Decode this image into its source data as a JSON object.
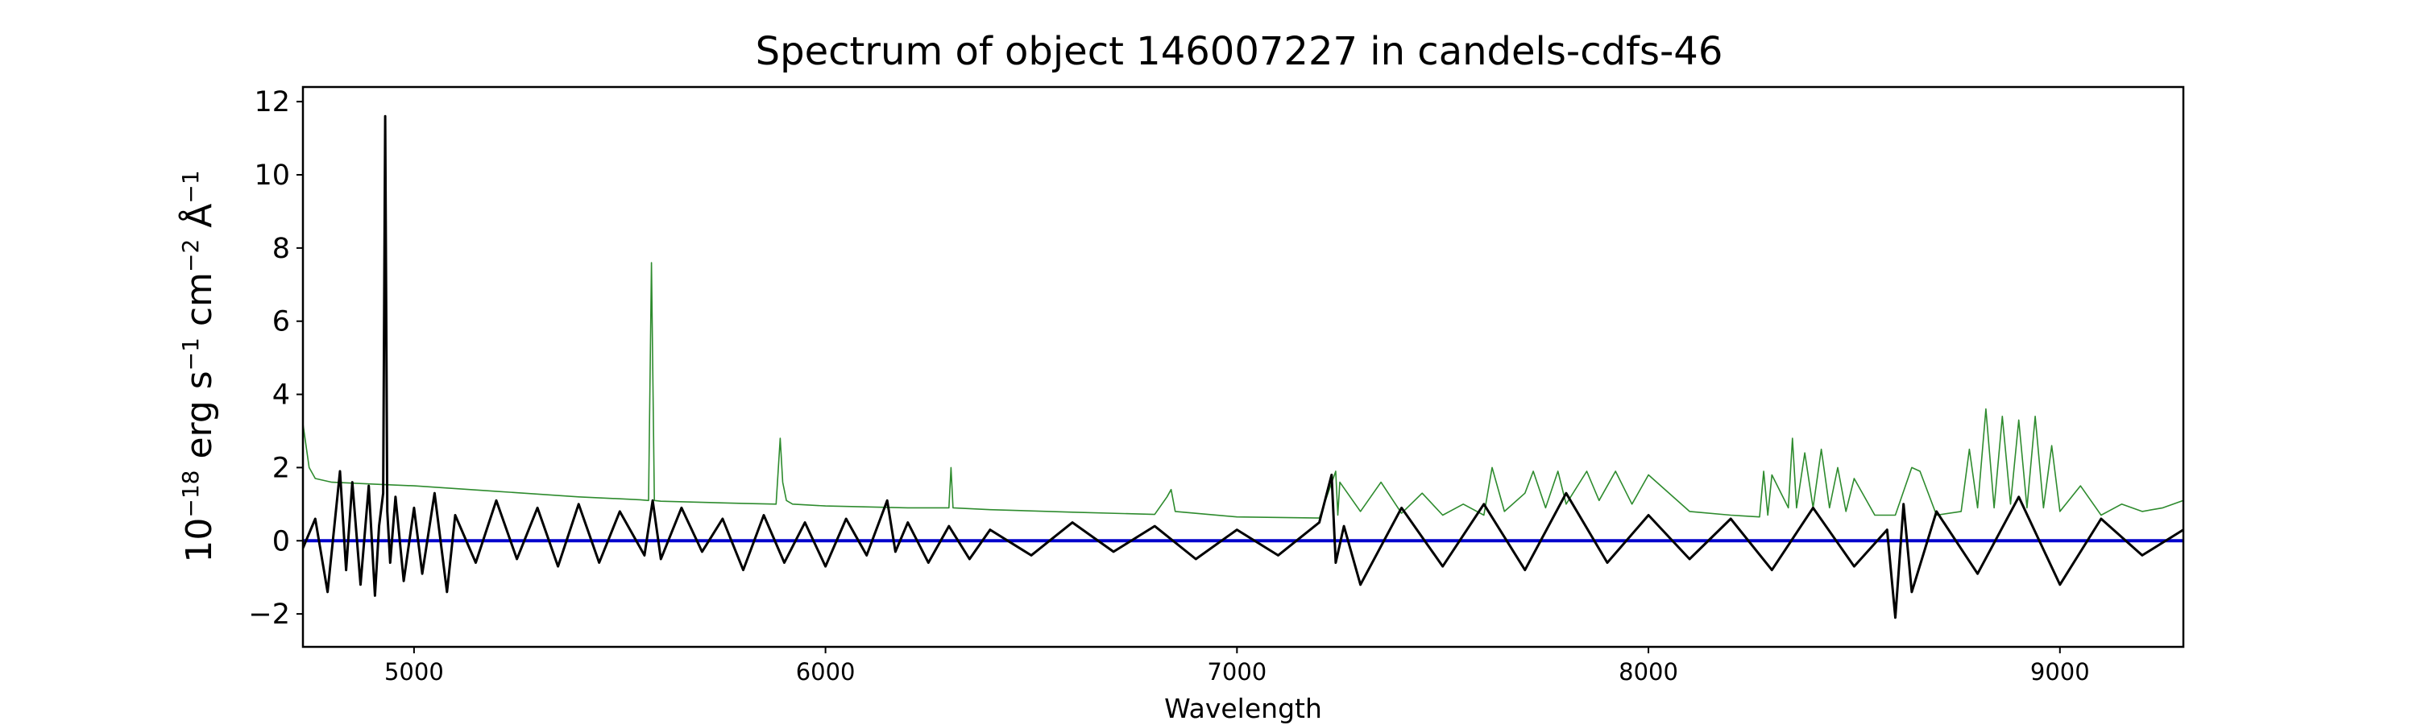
{
  "chart_data": {
    "type": "line",
    "title": "Spectrum of object 146007227 in candels-cdfs-46",
    "xlabel": "Wavelength",
    "ylabel": {
      "base": "10",
      "exp": "−18",
      "t1": " erg s",
      "e1": "−1",
      "t2": " cm",
      "e2": "−2",
      "t3": " Å",
      "e3": "−1"
    },
    "xlim": [
      4730,
      9300
    ],
    "ylim": [
      -2.9,
      12.4
    ],
    "xticks": [
      5000,
      6000,
      7000,
      8000,
      9000
    ],
    "yticks": [
      -2,
      0,
      2,
      4,
      6,
      8,
      10,
      12
    ],
    "ytick_labels": [
      "−2",
      "0",
      "2",
      "4",
      "6",
      "8",
      "10",
      "12"
    ],
    "grid": false,
    "colors": {
      "spectrum": "#000000",
      "sky": "#2e8b2e",
      "zero": "#0000cc"
    },
    "series": [
      {
        "role": "spectrum",
        "x": [
          4730,
          4760,
          4790,
          4820,
          4835,
          4850,
          4870,
          4890,
          4905,
          4915,
          4925,
          4930,
          4935,
          4942,
          4955,
          4975,
          5000,
          5020,
          5050,
          5080,
          5100,
          5150,
          5200,
          5250,
          5300,
          5350,
          5400,
          5450,
          5500,
          5560,
          5580,
          5600,
          5650,
          5700,
          5750,
          5800,
          5850,
          5900,
          5950,
          6000,
          6050,
          6100,
          6150,
          6170,
          6200,
          6250,
          6300,
          6350,
          6400,
          6500,
          6600,
          6700,
          6800,
          6900,
          7000,
          7100,
          7200,
          7230,
          7240,
          7260,
          7300,
          7400,
          7500,
          7600,
          7700,
          7800,
          7900,
          8000,
          8100,
          8200,
          8300,
          8400,
          8500,
          8580,
          8600,
          8620,
          8640,
          8700,
          8800,
          8900,
          9000,
          9100,
          9200,
          9300
        ],
        "y": [
          -0.2,
          0.6,
          -1.4,
          1.9,
          -0.8,
          1.6,
          -1.2,
          1.5,
          -1.5,
          0.4,
          1.3,
          11.6,
          0.8,
          -0.6,
          1.2,
          -1.1,
          0.9,
          -0.9,
          1.3,
          -1.4,
          0.7,
          -0.6,
          1.1,
          -0.5,
          0.9,
          -0.7,
          1.0,
          -0.6,
          0.8,
          -0.4,
          1.1,
          -0.5,
          0.9,
          -0.3,
          0.6,
          -0.8,
          0.7,
          -0.6,
          0.5,
          -0.7,
          0.6,
          -0.4,
          1.1,
          -0.3,
          0.5,
          -0.6,
          0.4,
          -0.5,
          0.3,
          -0.4,
          0.5,
          -0.3,
          0.4,
          -0.5,
          0.3,
          -0.4,
          0.5,
          1.8,
          -0.6,
          0.4,
          -1.2,
          0.9,
          -0.7,
          1.0,
          -0.8,
          1.3,
          -0.6,
          0.7,
          -0.5,
          0.6,
          -0.8,
          0.9,
          -0.7,
          0.3,
          -2.1,
          1.0,
          -1.4,
          0.8,
          -0.9,
          1.2,
          -1.2,
          0.6,
          -0.4,
          0.3
        ]
      },
      {
        "role": "sky",
        "x": [
          4730,
          4745,
          4760,
          4800,
          4900,
          5000,
          5200,
          5400,
          5550,
          5570,
          5577,
          5584,
          5600,
          5800,
          5880,
          5890,
          5896,
          5905,
          5920,
          6000,
          6200,
          6300,
          6305,
          6310,
          6400,
          6600,
          6800,
          6830,
          6840,
          6850,
          7000,
          7200,
          7240,
          7245,
          7250,
          7300,
          7350,
          7400,
          7450,
          7500,
          7550,
          7600,
          7620,
          7650,
          7700,
          7720,
          7750,
          7780,
          7800,
          7850,
          7880,
          7920,
          7960,
          8000,
          8100,
          8200,
          8270,
          8280,
          8290,
          8300,
          8340,
          8350,
          8360,
          8380,
          8400,
          8420,
          8440,
          8460,
          8480,
          8500,
          8550,
          8600,
          8640,
          8660,
          8700,
          8760,
          8780,
          8800,
          8820,
          8840,
          8860,
          8880,
          8900,
          8920,
          8940,
          8960,
          8980,
          9000,
          9050,
          9100,
          9150,
          9200,
          9250,
          9300
        ],
        "y": [
          3.2,
          2.0,
          1.7,
          1.6,
          1.55,
          1.5,
          1.35,
          1.2,
          1.12,
          1.1,
          7.6,
          1.1,
          1.08,
          1.02,
          1.0,
          2.8,
          1.6,
          1.1,
          1.0,
          0.95,
          0.9,
          0.9,
          2.0,
          0.9,
          0.85,
          0.78,
          0.72,
          1.2,
          1.4,
          0.8,
          0.65,
          0.62,
          1.9,
          0.7,
          1.6,
          0.8,
          1.6,
          0.75,
          1.3,
          0.7,
          1.0,
          0.7,
          2.0,
          0.8,
          1.3,
          1.9,
          0.9,
          1.9,
          1.0,
          1.9,
          1.1,
          1.9,
          1.0,
          1.8,
          0.8,
          0.7,
          0.65,
          1.9,
          0.7,
          1.8,
          0.9,
          2.8,
          0.9,
          2.4,
          0.9,
          2.5,
          0.9,
          2.0,
          0.8,
          1.7,
          0.7,
          0.7,
          2.0,
          1.9,
          0.7,
          0.8,
          2.5,
          0.9,
          3.6,
          0.9,
          3.4,
          1.0,
          3.3,
          0.9,
          3.4,
          0.9,
          2.6,
          0.8,
          1.5,
          0.7,
          1.0,
          0.8,
          0.9,
          1.1
        ]
      },
      {
        "role": "zero",
        "x": [
          4730,
          9300
        ],
        "y": [
          0,
          0
        ]
      }
    ]
  }
}
